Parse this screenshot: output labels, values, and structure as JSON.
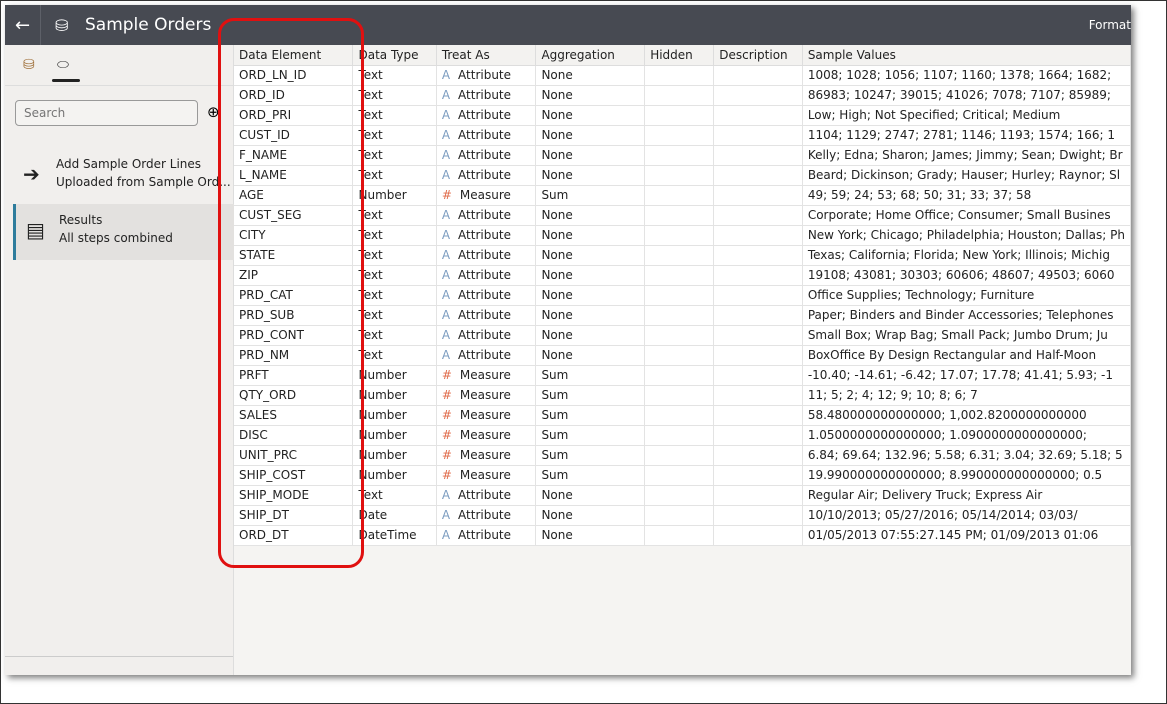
{
  "header": {
    "title": "Sample Orders",
    "right": "Format"
  },
  "sidebar": {
    "search_placeholder": "Search",
    "steps": [
      {
        "l1": "Add Sample Order Lines",
        "l2": "Uploaded from Sample Ord..."
      },
      {
        "l1": "Results",
        "l2": "All steps combined"
      }
    ]
  },
  "columns": [
    "Data Element",
    "Data Type",
    "Treat As",
    "Aggregation",
    "Hidden",
    "Description",
    "Sample Values"
  ],
  "rows": [
    [
      "ORD_LN_ID",
      "Text",
      "Attribute",
      "None",
      "1008; 1028; 1056; 1107; 1160; 1378; 1664; 1682;"
    ],
    [
      "ORD_ID",
      "Text",
      "Attribute",
      "None",
      "86983; 10247; 39015; 41026; 7078; 7107; 85989;"
    ],
    [
      "ORD_PRI",
      "Text",
      "Attribute",
      "None",
      "Low; High; Not Specified; Critical; Medium"
    ],
    [
      "CUST_ID",
      "Text",
      "Attribute",
      "None",
      "1104; 1129; 2747; 2781; 1146; 1193; 1574; 166; 1"
    ],
    [
      "F_NAME",
      "Text",
      "Attribute",
      "None",
      "Kelly; Edna; Sharon; James; Jimmy; Sean; Dwight; Br"
    ],
    [
      "L_NAME",
      "Text",
      "Attribute",
      "None",
      "Beard; Dickinson; Grady; Hauser; Hurley; Raynor; Sl"
    ],
    [
      "AGE",
      "Number",
      "Measure",
      "Sum",
      "49; 59; 24; 53; 68; 50; 31; 33; 37; 58"
    ],
    [
      "CUST_SEG",
      "Text",
      "Attribute",
      "None",
      "Corporate; Home Office; Consumer; Small Busines"
    ],
    [
      "CITY",
      "Text",
      "Attribute",
      "None",
      "New York; Chicago; Philadelphia; Houston; Dallas; Ph"
    ],
    [
      "STATE",
      "Text",
      "Attribute",
      "None",
      "Texas; California; Florida; New York; Illinois; Michig"
    ],
    [
      "ZIP",
      "Text",
      "Attribute",
      "None",
      "19108; 43081; 30303; 60606; 48607; 49503; 6060"
    ],
    [
      "PRD_CAT",
      "Text",
      "Attribute",
      "None",
      "Office Supplies; Technology; Furniture"
    ],
    [
      "PRD_SUB",
      "Text",
      "Attribute",
      "None",
      "Paper; Binders and Binder Accessories; Telephones"
    ],
    [
      "PRD_CONT",
      "Text",
      "Attribute",
      "None",
      "Small Box; Wrap Bag; Small Pack; Jumbo Drum; Ju"
    ],
    [
      "PRD_NM",
      "Text",
      "Attribute",
      "None",
      "BoxOffice By Design Rectangular and Half-Moon"
    ],
    [
      "PRFT",
      "Number",
      "Measure",
      "Sum",
      "-10.40; -14.61; -6.42; 17.07; 17.78; 41.41; 5.93; -1"
    ],
    [
      "QTY_ORD",
      "Number",
      "Measure",
      "Sum",
      "11; 5; 2; 4; 12; 9; 10; 8; 6; 7"
    ],
    [
      "SALES",
      "Number",
      "Measure",
      "Sum",
      "58.480000000000000; 1,002.8200000000000"
    ],
    [
      "DISC",
      "Number",
      "Measure",
      "Sum",
      "1.0500000000000000; 1.0900000000000000;"
    ],
    [
      "UNIT_PRC",
      "Number",
      "Measure",
      "Sum",
      "6.84; 69.64; 132.96; 5.58; 6.31; 3.04; 32.69; 5.18; 5"
    ],
    [
      "SHIP_COST",
      "Number",
      "Measure",
      "Sum",
      "19.990000000000000; 8.990000000000000; 0.5"
    ],
    [
      "SHIP_MODE",
      "Text",
      "Attribute",
      "None",
      "Regular Air; Delivery Truck; Express Air"
    ],
    [
      "SHIP_DT",
      "Date",
      "Attribute",
      "None",
      "10/10/2013; 05/27/2016; 05/14/2014; 03/03/"
    ],
    [
      "ORD_DT",
      "DateTime",
      "Attribute",
      "None",
      "01/05/2013 07:55:27.145 PM; 01/09/2013 01:06"
    ]
  ],
  "colors": {
    "header": "#474a52",
    "highlight": "#e01010",
    "selected_step": "#2e7c9c"
  }
}
